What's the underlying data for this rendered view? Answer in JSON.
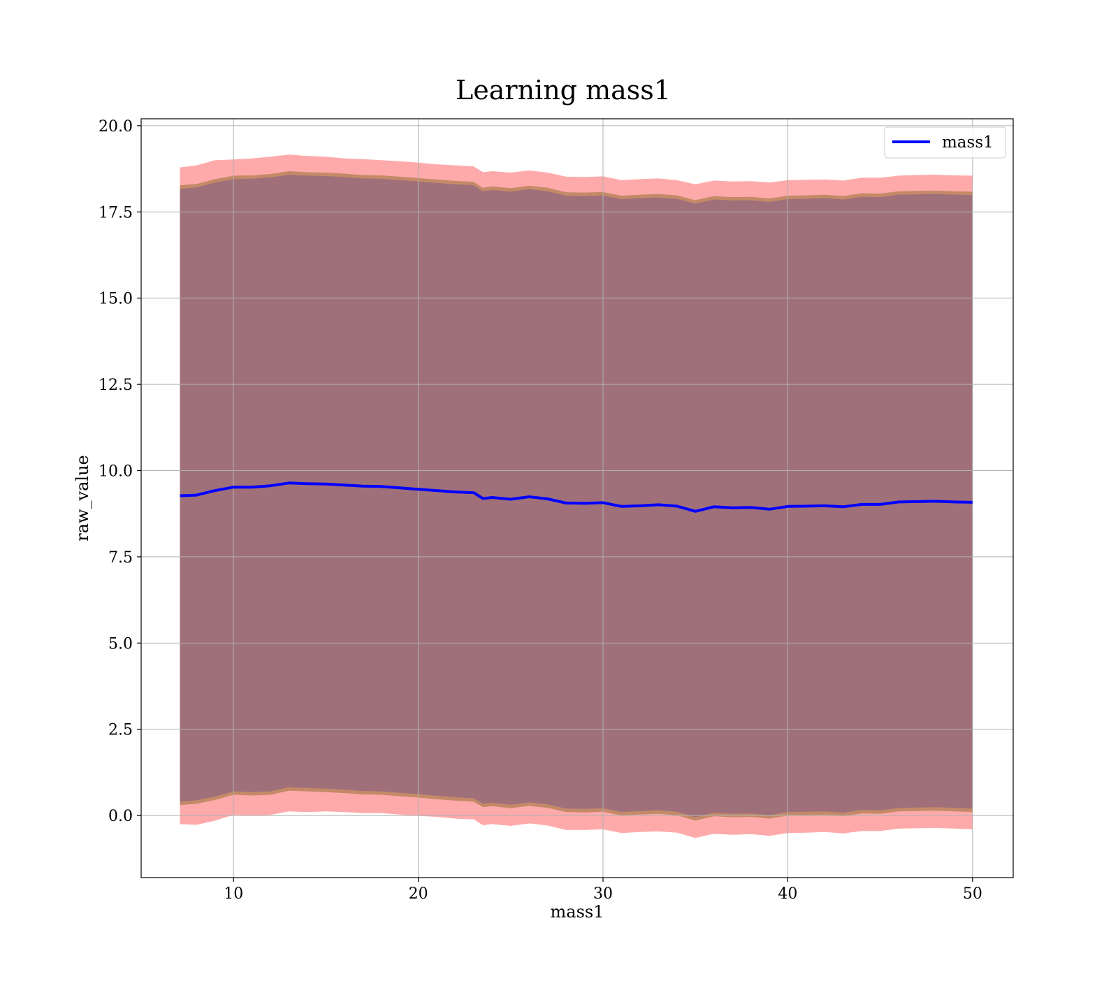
{
  "chart_data": {
    "type": "area",
    "title": "Learning mass1",
    "xlabel": "mass1",
    "ylabel": "raw_value",
    "xlim": [
      5.0,
      52.2
    ],
    "ylim": [
      -1.8,
      20.2
    ],
    "xticks": [
      10,
      20,
      30,
      40,
      50
    ],
    "xtick_labels": [
      "10",
      "20",
      "30",
      "40",
      "50"
    ],
    "yticks": [
      0.0,
      2.5,
      5.0,
      7.5,
      10.0,
      12.5,
      15.0,
      17.5,
      20.0
    ],
    "ytick_labels": [
      "0.0",
      "2.5",
      "5.0",
      "7.5",
      "10.0",
      "12.5",
      "15.0",
      "17.5",
      "20.0"
    ],
    "grid": true,
    "legend_position": "top-right",
    "x": [
      7.1,
      8,
      9,
      10,
      11,
      12,
      13,
      14,
      15,
      16,
      17,
      18,
      19,
      20,
      21,
      22,
      23,
      23.5,
      24,
      25,
      26,
      27,
      28,
      29,
      30,
      31,
      32,
      33,
      34,
      35,
      36,
      37,
      38,
      39,
      40,
      41,
      42,
      43,
      44,
      45,
      46,
      47,
      48,
      49,
      50
    ],
    "series": [
      {
        "name": "mass1",
        "color": "#0000ff",
        "values": [
          9.27,
          9.29,
          9.42,
          9.52,
          9.52,
          9.56,
          9.64,
          9.62,
          9.61,
          9.58,
          9.55,
          9.54,
          9.5,
          9.46,
          9.42,
          9.38,
          9.36,
          9.19,
          9.22,
          9.17,
          9.24,
          9.18,
          9.06,
          9.05,
          9.07,
          8.96,
          8.98,
          9.01,
          8.97,
          8.82,
          8.95,
          8.92,
          8.93,
          8.88,
          8.96,
          8.97,
          8.98,
          8.95,
          9.02,
          9.02,
          9.09,
          9.1,
          9.11,
          9.09,
          9.08
        ]
      }
    ],
    "bands": [
      {
        "color": "#ffaaaa",
        "upper": [
          18.79,
          18.85,
          19.0,
          19.02,
          19.05,
          19.1,
          19.16,
          19.12,
          19.1,
          19.05,
          19.03,
          19.0,
          18.97,
          18.93,
          18.88,
          18.85,
          18.82,
          18.65,
          18.68,
          18.64,
          18.7,
          18.64,
          18.52,
          18.51,
          18.53,
          18.42,
          18.45,
          18.47,
          18.42,
          18.3,
          18.41,
          18.38,
          18.39,
          18.35,
          18.42,
          18.43,
          18.44,
          18.41,
          18.49,
          18.49,
          18.55,
          18.57,
          18.58,
          18.56,
          18.55
        ],
        "lower": [
          -0.25,
          -0.27,
          -0.15,
          0.02,
          0.0,
          0.02,
          0.12,
          0.1,
          0.12,
          0.1,
          0.07,
          0.07,
          0.03,
          -0.01,
          -0.04,
          -0.09,
          -0.11,
          -0.28,
          -0.25,
          -0.3,
          -0.23,
          -0.29,
          -0.42,
          -0.42,
          -0.4,
          -0.51,
          -0.48,
          -0.46,
          -0.5,
          -0.65,
          -0.53,
          -0.56,
          -0.54,
          -0.59,
          -0.51,
          -0.5,
          -0.48,
          -0.52,
          -0.45,
          -0.45,
          -0.38,
          -0.37,
          -0.36,
          -0.38,
          -0.4
        ]
      },
      {
        "color": "#c48a68",
        "upper": [
          18.27,
          18.31,
          18.45,
          18.55,
          18.56,
          18.6,
          18.68,
          18.65,
          18.64,
          18.61,
          18.57,
          18.56,
          18.52,
          18.48,
          18.44,
          18.4,
          18.37,
          18.2,
          18.24,
          18.19,
          18.26,
          18.2,
          18.07,
          18.06,
          18.08,
          17.97,
          18.0,
          18.02,
          17.98,
          17.84,
          17.96,
          17.93,
          17.94,
          17.89,
          17.97,
          17.98,
          18.0,
          17.96,
          18.04,
          18.03,
          18.1,
          18.11,
          18.12,
          18.1,
          18.09
        ],
        "lower": [
          0.3,
          0.34,
          0.45,
          0.6,
          0.58,
          0.6,
          0.72,
          0.7,
          0.68,
          0.65,
          0.61,
          0.6,
          0.56,
          0.52,
          0.47,
          0.43,
          0.4,
          0.24,
          0.27,
          0.21,
          0.28,
          0.22,
          0.1,
          0.09,
          0.11,
          0.0,
          0.03,
          0.05,
          0.01,
          -0.15,
          -0.02,
          -0.05,
          -0.04,
          -0.09,
          0.0,
          0.01,
          0.02,
          -0.02,
          0.06,
          0.05,
          0.12,
          0.13,
          0.14,
          0.12,
          0.1
        ]
      },
      {
        "color": "#a0707a",
        "upper": [
          18.17,
          18.21,
          18.35,
          18.45,
          18.46,
          18.5,
          18.58,
          18.55,
          18.54,
          18.51,
          18.47,
          18.46,
          18.42,
          18.38,
          18.34,
          18.3,
          18.27,
          18.1,
          18.14,
          18.09,
          18.16,
          18.1,
          17.97,
          17.96,
          17.98,
          17.87,
          17.9,
          17.92,
          17.88,
          17.74,
          17.86,
          17.83,
          17.84,
          17.79,
          17.87,
          17.88,
          17.9,
          17.86,
          17.94,
          17.93,
          18.0,
          18.01,
          18.02,
          18.0,
          17.99
        ],
        "lower": [
          0.4,
          0.44,
          0.55,
          0.7,
          0.68,
          0.7,
          0.82,
          0.8,
          0.78,
          0.75,
          0.71,
          0.7,
          0.66,
          0.62,
          0.57,
          0.53,
          0.5,
          0.34,
          0.37,
          0.31,
          0.38,
          0.32,
          0.2,
          0.19,
          0.21,
          0.1,
          0.13,
          0.15,
          0.11,
          -0.05,
          0.08,
          0.05,
          0.06,
          0.01,
          0.1,
          0.11,
          0.12,
          0.08,
          0.16,
          0.15,
          0.22,
          0.23,
          0.24,
          0.22,
          0.2
        ]
      }
    ]
  }
}
